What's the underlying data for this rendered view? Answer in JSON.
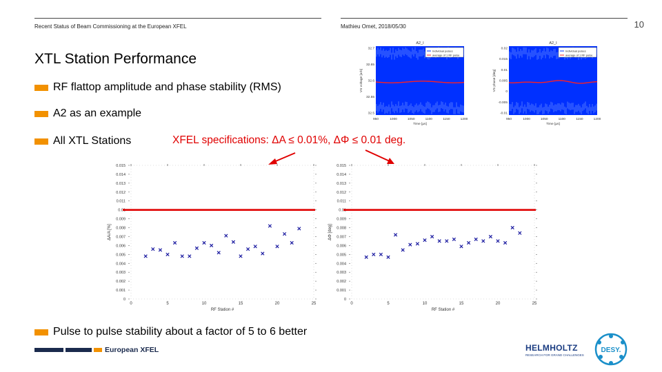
{
  "header": {
    "left": "Recent Status of Beam Commissioning at the European XFEL",
    "right": "Mathieu Omet, 2018/05/30",
    "page_number": "10"
  },
  "slide": {
    "title": "XTL Station Performance",
    "bullets": [
      "RF flattop amplitude and phase stability (RMS)",
      "A2 as an example",
      "All XTL Stations",
      "Pulse to pulse stability about a factor of 5 to 6 better"
    ],
    "spec_text": "XFEL specifications: ΔA ≤ 0.01%, ΔΦ ≤ 0.01 deg."
  },
  "colors": {
    "accent": "#f29100",
    "spec": "#e00000",
    "xfel_navy": "#1a2a4d",
    "desy_blue": "#1a8fc9"
  },
  "footer": {
    "xfel_logo_text": "European XFEL",
    "helmholtz_text": "HELMHOLTZ",
    "helmholtz_sub": "RESEARCH FOR GRAND CHALLENGES",
    "desy_text": "DESY."
  },
  "chart_data": [
    {
      "type": "line",
      "title": "A2_I",
      "xlabel": "Time [μs]",
      "ylabel": "VS voltage [arb]",
      "legend": [
        "Individual pulses",
        "average of 1 RF pulse"
      ],
      "legend_position": "top-right",
      "x_ticks": [
        "950",
        "1000",
        "1050",
        "1100",
        "1150",
        "1200"
      ],
      "y_ticks": [
        "32.7",
        "32.65",
        "32.6",
        "32.55",
        "32.5"
      ]
    },
    {
      "type": "line",
      "title": "A2_I",
      "xlabel": "Time [μs]",
      "ylabel": "VS phase [deg]",
      "legend": [
        "Individual pulses",
        "average of 1 RF pulse"
      ],
      "legend_position": "top-right",
      "x_ticks": [
        "950",
        "1000",
        "1050",
        "1100",
        "1150",
        "1200"
      ],
      "y_ticks": [
        "0.02",
        "0.015",
        "0.01",
        "0.005",
        "0",
        "-0.005",
        "-0.01"
      ]
    },
    {
      "type": "scatter",
      "xlabel": "RF Station #",
      "ylabel": "ΔA/A [%]",
      "xlim": [
        0,
        25
      ],
      "ylim": [
        0,
        0.015
      ],
      "x_ticks": [
        "0",
        "5",
        "10",
        "15",
        "20",
        "25"
      ],
      "y_ticks": [
        "0",
        "0.001",
        "0.002",
        "0.003",
        "0.004",
        "0.005",
        "0.006",
        "0.007",
        "0.008",
        "0.009",
        "0.01",
        "0.011",
        "0.012",
        "0.013",
        "0.014",
        "0.015"
      ],
      "threshold": 0.01,
      "x": [
        2,
        3,
        4,
        5,
        6,
        7,
        8,
        9,
        10,
        11,
        12,
        13,
        14,
        15,
        16,
        17,
        18,
        19,
        20,
        21,
        22,
        23
      ],
      "values": [
        0.0048,
        0.0056,
        0.0055,
        0.005,
        0.0063,
        0.0048,
        0.0048,
        0.0057,
        0.0063,
        0.006,
        0.0052,
        0.0071,
        0.0064,
        0.0048,
        0.0056,
        0.0059,
        0.0051,
        0.0082,
        0.0059,
        0.0073,
        0.0063,
        0.0079
      ]
    },
    {
      "type": "scatter",
      "xlabel": "RF Station #",
      "ylabel": "ΔΦ [deg]",
      "xlim": [
        0,
        25
      ],
      "ylim": [
        0,
        0.015
      ],
      "x_ticks": [
        "0",
        "5",
        "10",
        "15",
        "20",
        "25"
      ],
      "y_ticks": [
        "0",
        "0.001",
        "0.002",
        "0.003",
        "0.004",
        "0.005",
        "0.006",
        "0.007",
        "0.008",
        "0.009",
        "0.01",
        "0.011",
        "0.012",
        "0.013",
        "0.014",
        "0.015"
      ],
      "threshold": 0.01,
      "x": [
        2,
        3,
        4,
        5,
        6,
        7,
        8,
        9,
        10,
        11,
        12,
        13,
        14,
        15,
        16,
        17,
        18,
        19,
        20,
        21,
        22,
        23
      ],
      "values": [
        0.0047,
        0.005,
        0.005,
        0.0047,
        0.0072,
        0.0055,
        0.0061,
        0.0062,
        0.0066,
        0.007,
        0.0065,
        0.0065,
        0.0067,
        0.0059,
        0.0063,
        0.0067,
        0.0065,
        0.007,
        0.0065,
        0.0063,
        0.008,
        0.0074
      ]
    }
  ]
}
